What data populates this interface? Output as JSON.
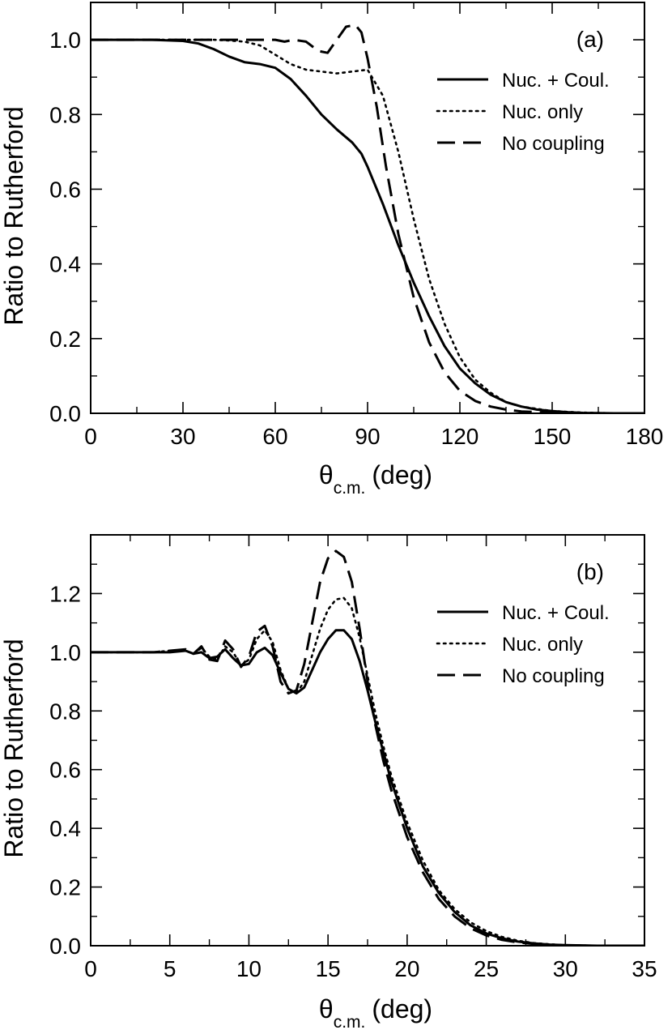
{
  "chart_data": [
    {
      "type": "line",
      "panel_label": "(a)",
      "xlabel_main": "θ",
      "xlabel_sub": "c.m.",
      "xlabel_unit": "(deg)",
      "ylabel": "Ratio to Rutherford",
      "xlim": [
        0,
        180
      ],
      "ylim": [
        0,
        1.1
      ],
      "xticks": [
        0,
        30,
        60,
        90,
        120,
        150,
        180
      ],
      "xtick_labels": [
        "0",
        "30",
        "60",
        "90",
        "120",
        "150",
        "180"
      ],
      "yticks": [
        0,
        0.2,
        0.4,
        0.6,
        0.8,
        1.0
      ],
      "ytick_labels": [
        "0.0",
        "0.2",
        "0.4",
        "0.6",
        "0.8",
        "1.0"
      ],
      "legend_position": "top-right",
      "series": [
        {
          "name": "Nuc. + Coul.",
          "style": "solid",
          "x": [
            0,
            20,
            30,
            35,
            40,
            45,
            50,
            55,
            60,
            65,
            70,
            75,
            80,
            85,
            88,
            90,
            95,
            100,
            105,
            110,
            115,
            120,
            125,
            130,
            135,
            140,
            145,
            150,
            155,
            160,
            170,
            180
          ],
          "y": [
            1.0,
            1.0,
            0.997,
            0.99,
            0.975,
            0.955,
            0.94,
            0.935,
            0.925,
            0.895,
            0.85,
            0.8,
            0.76,
            0.725,
            0.695,
            0.66,
            0.56,
            0.45,
            0.35,
            0.26,
            0.18,
            0.12,
            0.08,
            0.05,
            0.03,
            0.018,
            0.01,
            0.006,
            0.003,
            0.001,
            0.0,
            0.0
          ]
        },
        {
          "name": "Nuc. only",
          "style": "dotted",
          "x": [
            0,
            20,
            30,
            40,
            45,
            50,
            55,
            60,
            65,
            70,
            75,
            80,
            85,
            90,
            95,
            100,
            105,
            110,
            115,
            120,
            125,
            130,
            135,
            140,
            150,
            160,
            170,
            180
          ],
          "y": [
            1.0,
            1.0,
            1.0,
            1.0,
            0.998,
            0.995,
            0.985,
            0.96,
            0.935,
            0.92,
            0.915,
            0.91,
            0.915,
            0.92,
            0.85,
            0.7,
            0.52,
            0.36,
            0.24,
            0.15,
            0.09,
            0.055,
            0.03,
            0.018,
            0.006,
            0.002,
            0.0,
            0.0
          ]
        },
        {
          "name": "No coupling",
          "style": "dashed",
          "x": [
            0,
            20,
            30,
            40,
            50,
            55,
            60,
            63,
            66,
            70,
            74,
            77,
            80,
            83,
            86,
            88,
            90,
            93,
            96,
            100,
            105,
            110,
            115,
            120,
            125,
            130,
            135,
            140,
            150,
            160,
            180
          ],
          "y": [
            1.0,
            1.0,
            1.0,
            1.0,
            1.0,
            1.0,
            1.0,
            0.995,
            1.0,
            0.995,
            0.97,
            0.965,
            1.0,
            1.035,
            1.04,
            1.02,
            0.95,
            0.82,
            0.66,
            0.48,
            0.31,
            0.19,
            0.11,
            0.06,
            0.033,
            0.018,
            0.01,
            0.005,
            0.001,
            0.0,
            0.0
          ]
        }
      ]
    },
    {
      "type": "line",
      "panel_label": "(b)",
      "xlabel_main": "θ",
      "xlabel_sub": "c.m.",
      "xlabel_unit": "(deg)",
      "ylabel": "Ratio to Rutherford",
      "xlim": [
        0,
        35
      ],
      "ylim": [
        0,
        1.4
      ],
      "xticks": [
        0,
        5,
        10,
        15,
        20,
        25,
        30,
        35
      ],
      "xtick_labels": [
        "0",
        "5",
        "10",
        "15",
        "20",
        "25",
        "30",
        "35"
      ],
      "yticks": [
        0,
        0.2,
        0.4,
        0.6,
        0.8,
        1.0,
        1.2
      ],
      "ytick_labels": [
        "0.0",
        "0.2",
        "0.4",
        "0.6",
        "0.8",
        "1.0",
        "1.2"
      ],
      "legend_position": "top-right",
      "series": [
        {
          "name": "Nuc. + Coul.",
          "style": "solid",
          "x": [
            0,
            4,
            5,
            6,
            6.5,
            7,
            7.5,
            8,
            8.5,
            9,
            9.5,
            10,
            10.5,
            11,
            11.5,
            12,
            12.5,
            13,
            13.5,
            14,
            14.5,
            15,
            15.5,
            16,
            16.5,
            17,
            17.5,
            18,
            18.5,
            19,
            20,
            21,
            22,
            23,
            24,
            25,
            26,
            27,
            28,
            29,
            30,
            32,
            35
          ],
          "y": [
            1.0,
            1.0,
            1.0,
            1.005,
            0.995,
            1.0,
            0.98,
            0.985,
            1.01,
            0.98,
            0.955,
            0.96,
            1.0,
            1.015,
            0.99,
            0.93,
            0.875,
            0.86,
            0.88,
            0.94,
            1.0,
            1.045,
            1.075,
            1.075,
            1.045,
            0.97,
            0.87,
            0.76,
            0.66,
            0.56,
            0.4,
            0.27,
            0.18,
            0.115,
            0.07,
            0.042,
            0.025,
            0.014,
            0.008,
            0.004,
            0.002,
            0.0,
            0.0
          ]
        },
        {
          "name": "Nuc. only",
          "style": "dotted",
          "x": [
            0,
            4,
            5,
            6,
            6.5,
            7,
            7.5,
            8,
            8.5,
            9,
            9.5,
            10,
            10.5,
            11,
            11.5,
            12,
            12.5,
            13,
            13.5,
            14,
            14.5,
            15,
            15.5,
            16,
            16.5,
            17,
            17.5,
            18,
            18.5,
            19,
            20,
            21,
            22,
            23,
            24,
            25,
            26,
            27,
            28,
            29,
            30,
            32,
            35
          ],
          "y": [
            1.0,
            1.0,
            1.005,
            1.005,
            0.995,
            1.015,
            0.985,
            0.975,
            1.02,
            1.0,
            0.955,
            0.975,
            1.045,
            1.075,
            1.035,
            0.94,
            0.875,
            0.86,
            0.9,
            0.99,
            1.08,
            1.145,
            1.18,
            1.185,
            1.15,
            1.05,
            0.92,
            0.79,
            0.68,
            0.58,
            0.42,
            0.29,
            0.19,
            0.125,
            0.08,
            0.05,
            0.03,
            0.017,
            0.009,
            0.005,
            0.002,
            0.0,
            0.0
          ]
        },
        {
          "name": "No coupling",
          "style": "dashed",
          "x": [
            0,
            4,
            5,
            6,
            6.5,
            7,
            7.5,
            8,
            8.5,
            9,
            9.5,
            10,
            10.5,
            11,
            11.5,
            12,
            12.5,
            13,
            13.5,
            14,
            14.5,
            15,
            15.5,
            16,
            16.5,
            17,
            17.5,
            18,
            18.5,
            19,
            20,
            21,
            22,
            23,
            24,
            25,
            26,
            27,
            28,
            29,
            30,
            32,
            35
          ],
          "y": [
            1.0,
            1.0,
            1.005,
            1.01,
            0.995,
            1.02,
            0.975,
            0.97,
            1.04,
            1.01,
            0.95,
            0.985,
            1.07,
            1.09,
            1.02,
            0.9,
            0.86,
            0.87,
            0.96,
            1.1,
            1.24,
            1.32,
            1.345,
            1.325,
            1.24,
            1.08,
            0.9,
            0.75,
            0.63,
            0.53,
            0.37,
            0.25,
            0.16,
            0.1,
            0.06,
            0.035,
            0.02,
            0.011,
            0.006,
            0.003,
            0.001,
            0.0,
            0.0
          ]
        }
      ]
    }
  ]
}
